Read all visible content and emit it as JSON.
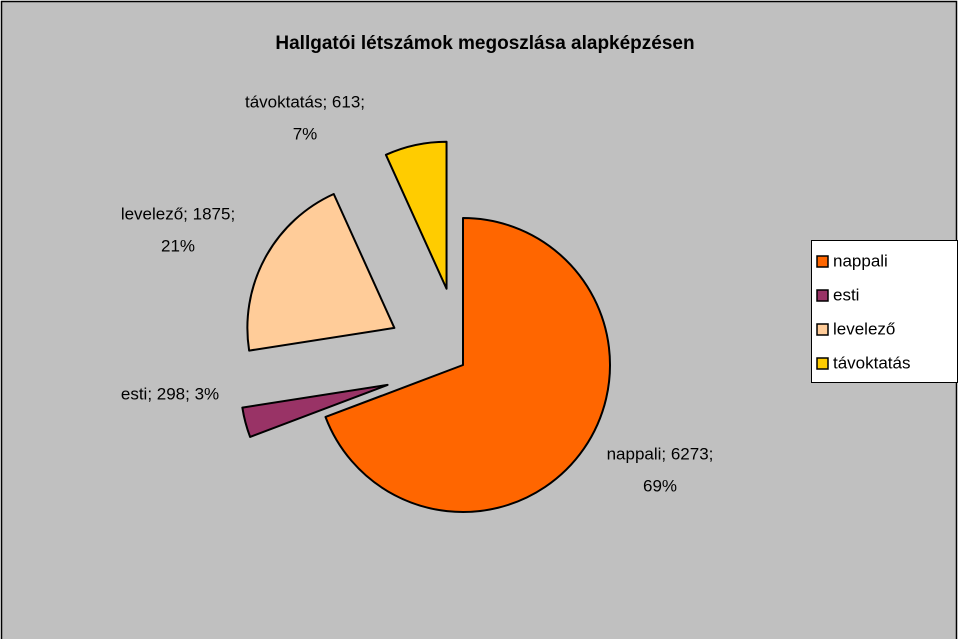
{
  "chart_data": {
    "type": "pie",
    "title": "Hallgatói létszámok megoszlása alapképzésen",
    "categories": [
      "nappali",
      "esti",
      "levelező",
      "távoktatás"
    ],
    "values": [
      6273,
      298,
      1875,
      613
    ],
    "value_labels": [
      [
        "nappali; 6273;",
        "69%"
      ],
      [
        "esti; 298; 3%"
      ],
      [
        "levelező; 1875;",
        "21%"
      ],
      [
        "távoktatás; 613;",
        "7%"
      ]
    ],
    "colors": [
      "#ff6600",
      "#993366",
      "#ffcc99",
      "#ffcc00"
    ],
    "legend": "right"
  }
}
